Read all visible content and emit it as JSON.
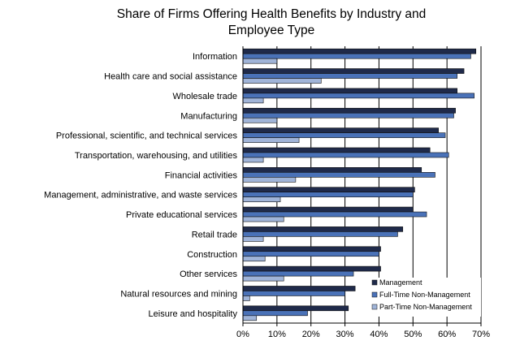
{
  "chart_data": {
    "type": "bar",
    "orientation": "horizontal",
    "title_lines": [
      "Share of Firms Offering Health Benefits by Industry and",
      "Employee Type"
    ],
    "categories": [
      "Information",
      "Health care and social assistance",
      "Wholesale trade",
      "Manufacturing",
      "Professional, scientific, and technical services",
      "Transportation, warehousing, and utilities",
      "Financial activities",
      "Management, administrative, and waste services",
      "Private educational services",
      "Retail trade",
      "Construction",
      "Other services",
      "Natural resources and mining",
      "Leisure and hospitality"
    ],
    "series": [
      {
        "name": "Management",
        "color": "#1f2a4a",
        "values": [
          68.5,
          65,
          63,
          62.5,
          57.5,
          55,
          52.5,
          50.5,
          50,
          47,
          40.5,
          40.5,
          33,
          31
        ]
      },
      {
        "name": "Full-Time Non-Management",
        "color": "#4a72b8",
        "values": [
          67,
          63,
          68,
          62,
          59.5,
          60.5,
          56.5,
          50,
          54,
          45.5,
          40,
          32.5,
          30,
          19
        ]
      },
      {
        "name": "Part-Time Non-Management",
        "color": "#a0b4d8",
        "values": [
          10,
          23,
          6,
          10,
          16.5,
          6,
          15.5,
          11,
          12,
          6,
          6.5,
          12,
          2,
          4
        ]
      }
    ],
    "xlim": [
      0,
      70
    ],
    "x_ticks": [
      "0%",
      "10%",
      "20%",
      "30%",
      "40%",
      "50%",
      "60%",
      "70%"
    ],
    "gridlines": "vertical",
    "legend_position": "bottom-right"
  }
}
